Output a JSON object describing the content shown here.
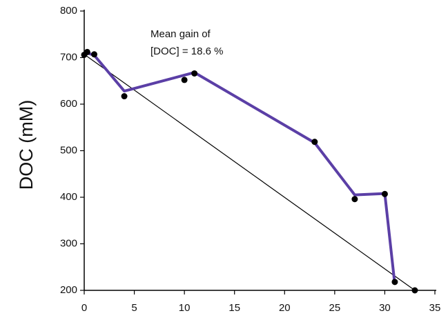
{
  "chart_data": {
    "type": "line",
    "y_label": "DOC (mM)",
    "annotation": [
      "Mean gain of",
      "[DOC] = 18.6 %"
    ],
    "xlim": [
      0,
      35
    ],
    "xticks": [
      0,
      5,
      10,
      15,
      20,
      25,
      30,
      35
    ],
    "ylim": [
      200,
      800
    ],
    "yticks": [
      200,
      300,
      400,
      500,
      600,
      700,
      800
    ],
    "grid": false,
    "series": [
      {
        "mode": "lines",
        "color": "#000000",
        "width": 1.2,
        "x": [
          0,
          33
        ],
        "values": [
          707,
          200
        ]
      },
      {
        "mode": "lines",
        "color": "#5b3fa6",
        "width": 4,
        "x": [
          0,
          1,
          4,
          11,
          23,
          27,
          30,
          31
        ],
        "values": [
          712,
          705,
          628,
          668,
          517,
          405,
          408,
          213
        ]
      },
      {
        "mode": "markers",
        "color": "#000000",
        "x": [
          0,
          0.3,
          1,
          4,
          10,
          11,
          23,
          27,
          30,
          31,
          33
        ],
        "values": [
          706,
          712,
          707,
          617,
          652,
          666,
          519,
          396,
          407,
          218,
          200
        ]
      }
    ]
  }
}
